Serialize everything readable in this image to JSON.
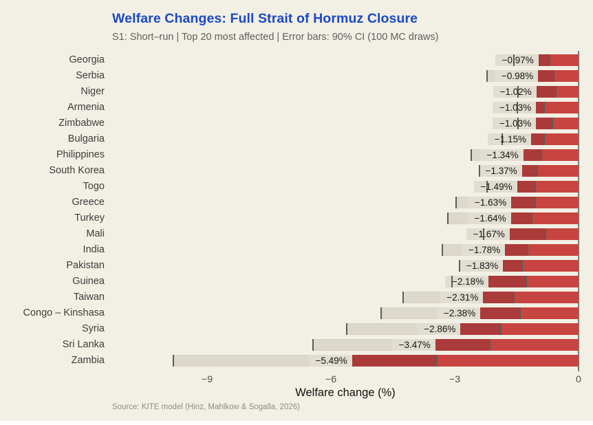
{
  "title": "Welfare Changes: Full Strait of Hormuz Closure",
  "subtitle": "S1: Short–run | Top 20 most affected | Error bars: 90% CI (100 MC draws)",
  "source": "Source: KITE model (Hinz, Mahlkow & Sogalla, 2026)",
  "colors": {
    "background": "#f2efe4",
    "title": "#1b49c8",
    "subtitle": "#606060",
    "bar": "#c84440",
    "bar_ci_overlap": "#ab3a3a",
    "ci_band": "#dcd8cb",
    "label_box": "#e1ddd1",
    "whisker": "#5d5b55",
    "axis_line": "#7d7b76",
    "tick_text": "#4e4e4e",
    "country_text": "#3d3d3d",
    "value_text": "#161616",
    "source_text": "#8f8d85"
  },
  "chart_data": {
    "type": "bar",
    "orientation": "horizontal",
    "title": "Welfare Changes: Full Strait of Hormuz Closure",
    "subtitle": "S1: Short–run | Top 20 most affected | Error bars: 90% CI (100 MC draws)",
    "xlabel": "Welfare change (%)",
    "ylabel": "",
    "xlim": [
      -11.3,
      0
    ],
    "grid": false,
    "legend": false,
    "categories": [
      "Georgia",
      "Serbia",
      "Niger",
      "Armenia",
      "Zimbabwe",
      "Bulgaria",
      "Philippines",
      "South Korea",
      "Togo",
      "Greece",
      "Turkey",
      "Mali",
      "India",
      "Pakistan",
      "Guinea",
      "Taiwan",
      "Congo – Kinshasa",
      "Syria",
      "Sri Lanka",
      "Zambia"
    ],
    "values": [
      -0.97,
      -0.98,
      -1.02,
      -1.03,
      -1.03,
      -1.15,
      -1.34,
      -1.37,
      -1.49,
      -1.63,
      -1.64,
      -1.67,
      -1.78,
      -1.83,
      -2.18,
      -2.31,
      -2.38,
      -2.86,
      -3.47,
      -5.49
    ],
    "value_labels": [
      "−0.97%",
      "−0.98%",
      "−1.02%",
      "−1.03%",
      "−1.03%",
      "−1.15%",
      "−1.34%",
      "−1.37%",
      "−1.49%",
      "−1.63%",
      "−1.64%",
      "−1.67%",
      "−1.78%",
      "−1.83%",
      "−2.18%",
      "−2.31%",
      "−2.38%",
      "−2.86%",
      "−3.47%",
      "−5.49%"
    ],
    "ci_low": [
      -1.57,
      -2.22,
      -1.47,
      -1.48,
      -1.47,
      -1.85,
      -2.6,
      -2.4,
      -2.22,
      -2.97,
      -3.17,
      -2.3,
      -3.3,
      -2.88,
      -3.07,
      -4.25,
      -4.78,
      -5.62,
      -6.43,
      -9.82
    ],
    "ci_high": [
      -0.7,
      -0.6,
      -0.55,
      -0.83,
      -0.63,
      -0.83,
      -0.9,
      -1.0,
      -1.05,
      -1.05,
      -1.13,
      -0.8,
      -1.23,
      -1.37,
      -1.27,
      -1.57,
      -1.42,
      -1.88,
      -2.15,
      -3.43
    ],
    "xticks": [
      {
        "value": -9,
        "label": "−9"
      },
      {
        "value": -6,
        "label": "−6"
      },
      {
        "value": -3,
        "label": "−3"
      },
      {
        "value": 0,
        "label": "0"
      }
    ]
  }
}
